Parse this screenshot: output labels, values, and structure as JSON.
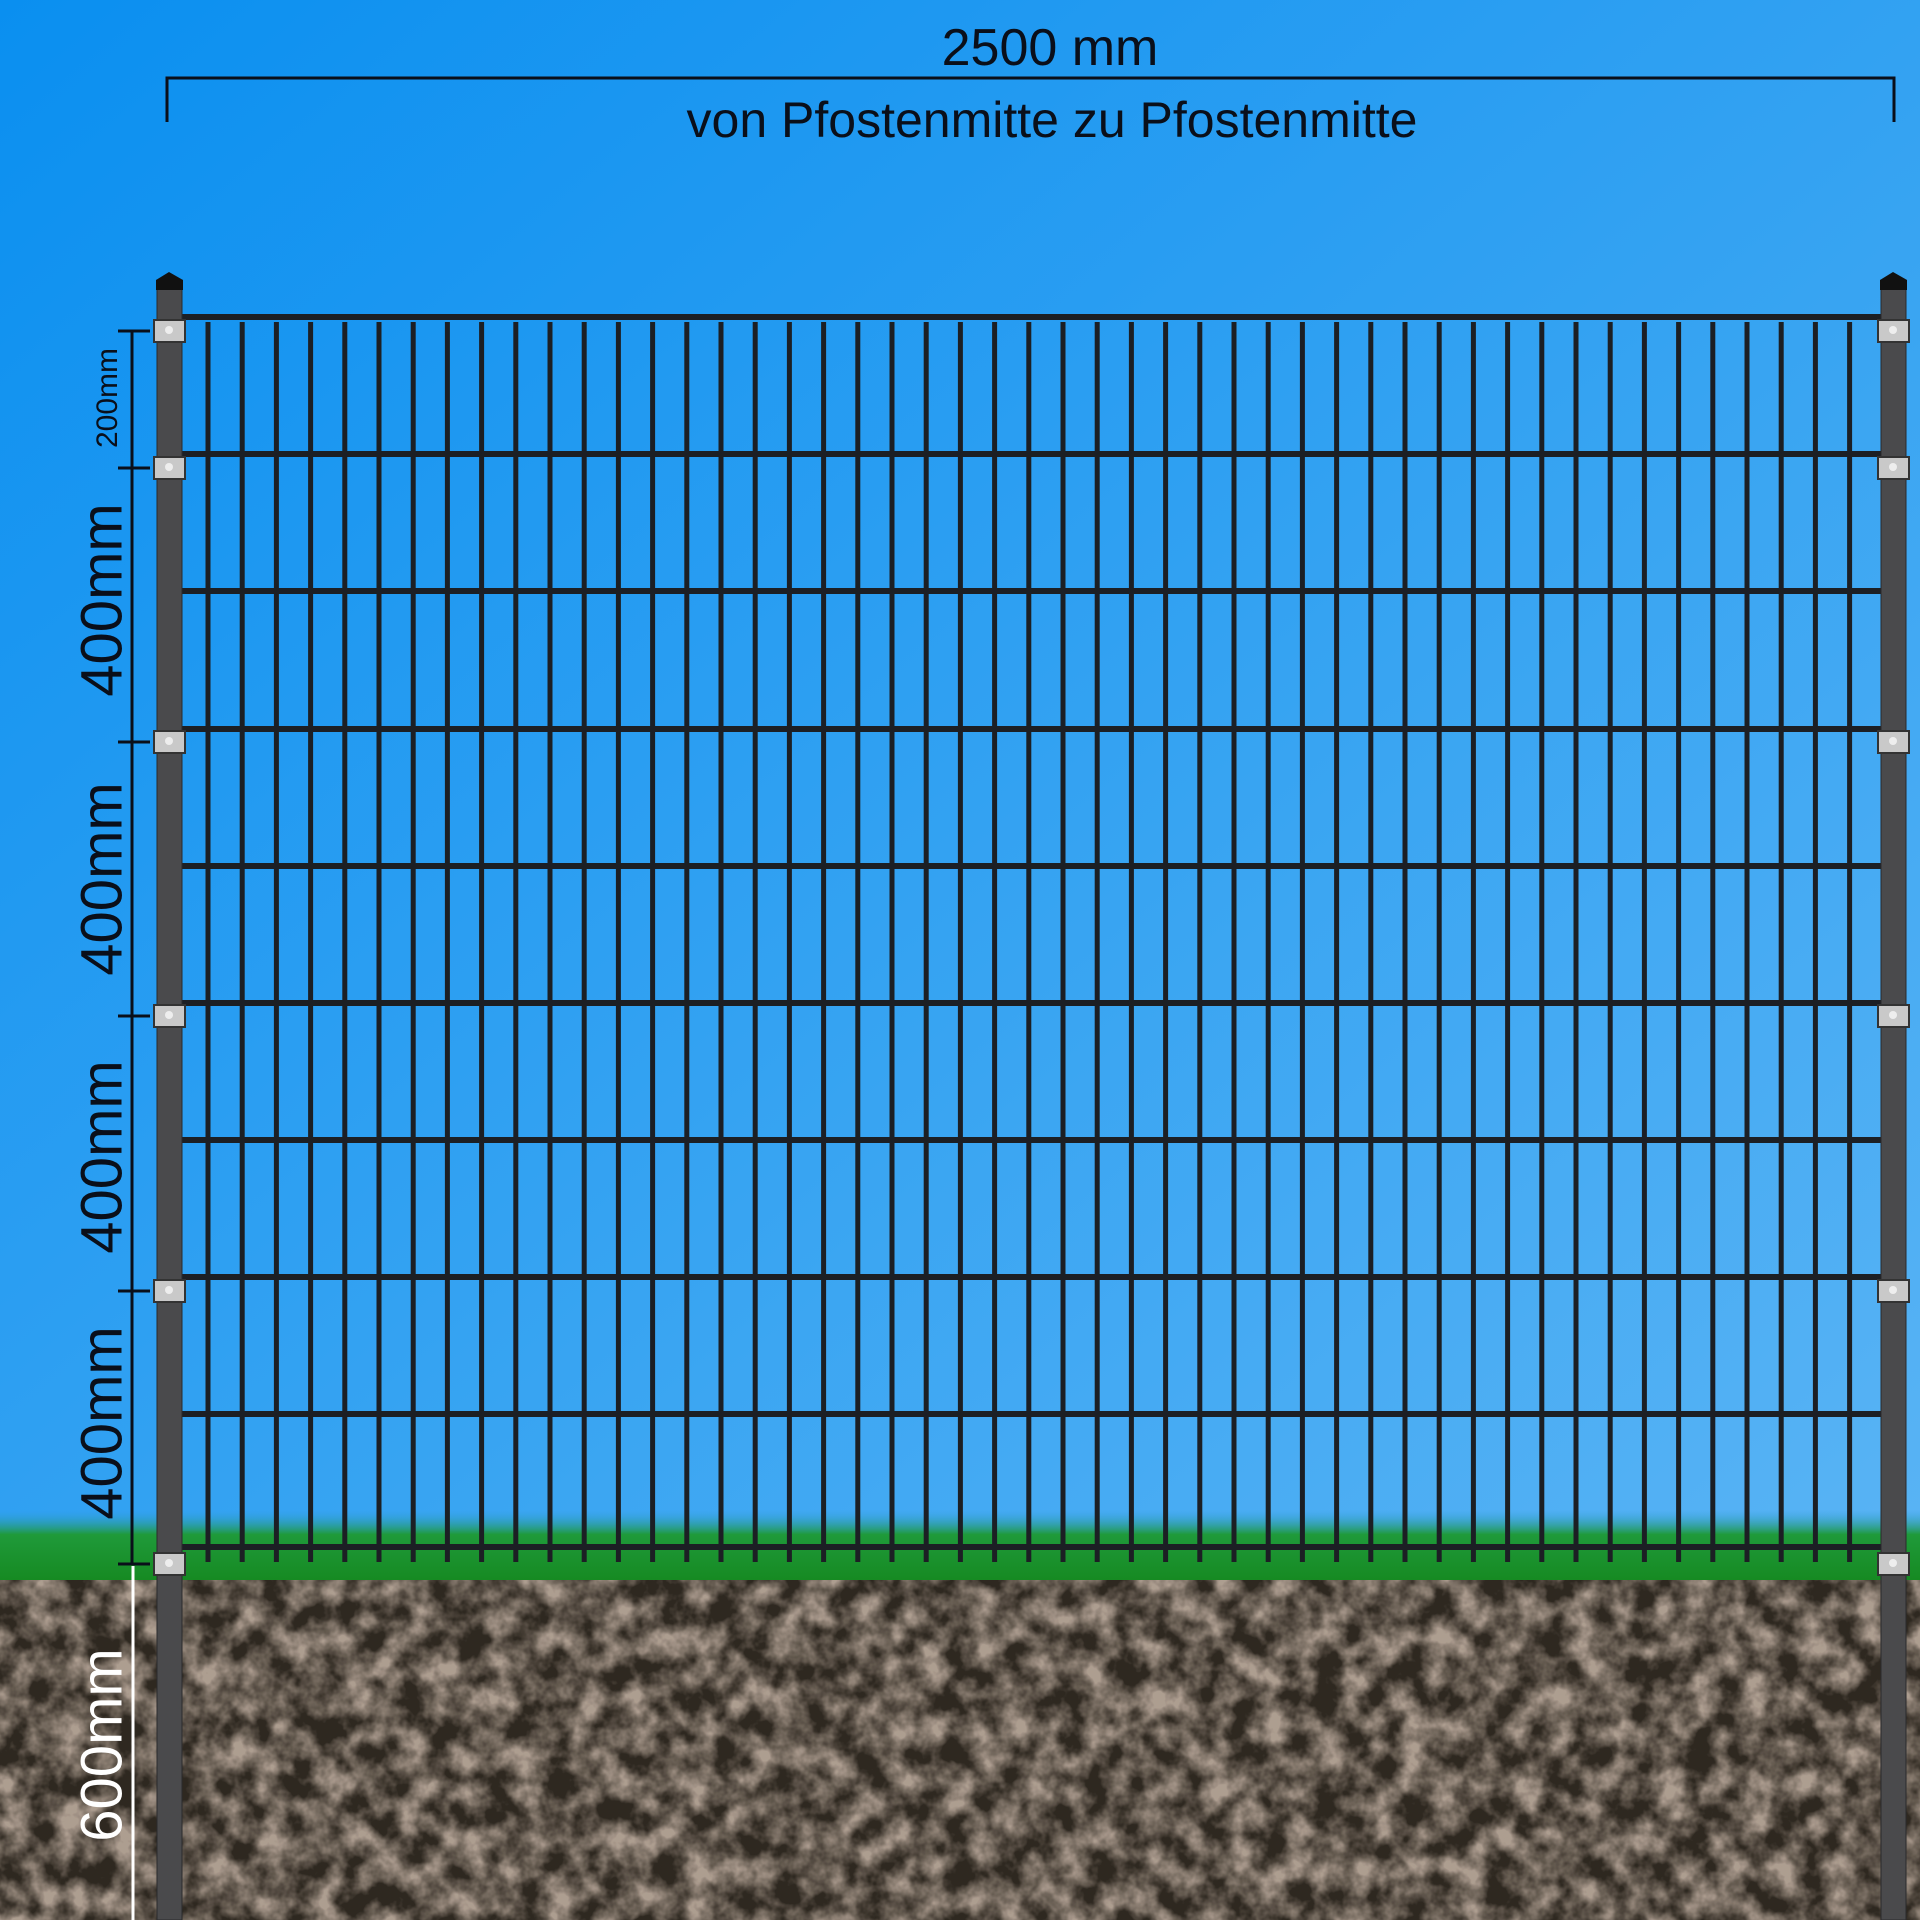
{
  "width_label": "2500 mm",
  "width_caption": "von Pfostenmitte zu Pfostenmitte",
  "height_labels": [
    "200mm",
    "400mm",
    "400mm",
    "400mm",
    "400mm"
  ],
  "depth_label": "600mm",
  "colors": {
    "sky_top": "#0a8ff0",
    "sky_bottom": "#4aa8f0",
    "post": "#4a4a4c",
    "wire": "#1c1f24",
    "clamp": "#c9c9c9",
    "grass": "#1c9a2a",
    "soil": "#6b5646",
    "dimension_line": "#0a0f1a",
    "depth_line": "#ffffff"
  }
}
